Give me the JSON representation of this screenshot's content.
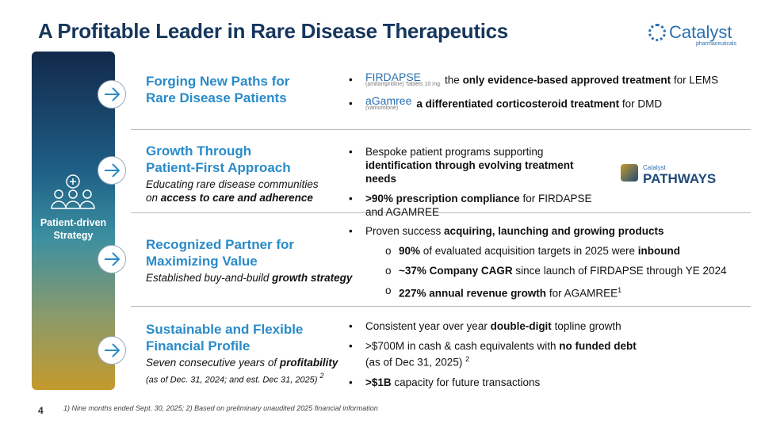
{
  "title": "A Profitable Leader in Rare Disease Therapeutics",
  "logo": {
    "name": "Catalyst",
    "sub": "pharmaceuticals"
  },
  "sidebar": {
    "label": "Patient-driven Strategy"
  },
  "rows": [
    {
      "heading": [
        "Forging New Paths for",
        "Rare Disease Patients"
      ],
      "subtitle": [],
      "bullets": [
        {
          "logo": {
            "name": "FIRDAPSE",
            "sub": "(amifampridine) Tablets 10 mg"
          },
          "segments": [
            {
              "text": "the "
            },
            {
              "text": "only evidence-based approved treatment",
              "bold": true
            },
            {
              "text": " for LEMS"
            }
          ]
        },
        {
          "logo": {
            "name": "aGamree",
            "sub": "(vamorolone)"
          },
          "segments": [
            {
              "text": "a differentiated corticosteroid treatment",
              "bold": true
            },
            {
              "text": " for DMD"
            }
          ]
        }
      ]
    },
    {
      "heading": [
        "Growth Through",
        "Patient-First Approach"
      ],
      "subtitle": [
        [
          {
            "text": "Educating rare disease communities"
          }
        ],
        [
          {
            "text": "on "
          },
          {
            "text": "access to care and adherence",
            "bold": true
          }
        ]
      ],
      "bullets": [
        {
          "segments": [
            {
              "text": "Bespoke patient programs supporting "
            },
            {
              "text": "identification through evolving treatment needs",
              "bold": true
            }
          ]
        },
        {
          "segments": [
            {
              "text": ">90% prescription compliance",
              "bold": true
            },
            {
              "text": " for FIRDAPSE and AGAMREE"
            }
          ]
        }
      ],
      "side_logo": {
        "name": "Catalyst",
        "main": "PATHWAYS"
      }
    },
    {
      "heading": [
        "Recognized Partner for",
        "Maximizing Value"
      ],
      "subtitle": [
        [
          {
            "text": "Established buy-and-build "
          },
          {
            "text": "growth strategy",
            "bold": true
          }
        ]
      ],
      "bullets": [
        {
          "segments": [
            {
              "text": "Proven success "
            },
            {
              "text": "acquiring, launching and growing products",
              "bold": true
            }
          ],
          "sub": [
            [
              {
                "text": "90%",
                "bold": true
              },
              {
                "text": " of evaluated acquisition targets in 2025 were "
              },
              {
                "text": "inbound",
                "bold": true
              }
            ],
            [
              {
                "text": "~37% Company CAGR",
                "bold": true
              },
              {
                "text": " since launch of FIRDAPSE through YE 2024"
              }
            ],
            [
              {
                "text": "227% annual revenue growth",
                "bold": true
              },
              {
                "text": " for AGAMREE"
              },
              {
                "text": "1",
                "sup": true
              }
            ]
          ]
        }
      ]
    },
    {
      "heading": [
        "Sustainable and Flexible",
        "Financial Profile"
      ],
      "subtitle": [
        [
          {
            "text": "Seven consecutive years of "
          },
          {
            "text": "profitability",
            "bold": true
          }
        ],
        [
          {
            "text": "(as of Dec. 31, 2024; and est. Dec 31, 2025) ",
            "small": true
          },
          {
            "text": "2",
            "sup": true
          }
        ]
      ],
      "bullets": [
        {
          "segments": [
            {
              "text": "Consistent year over year "
            },
            {
              "text": "double-digit",
              "bold": true
            },
            {
              "text": " topline growth"
            }
          ]
        },
        {
          "segments": [
            {
              "text": ">$700M in cash & cash equivalents with "
            },
            {
              "text": "no funded debt",
              "bold": true
            },
            {
              "text": " (as of Dec 31, 2025) "
            },
            {
              "text": "2",
              "sup": true
            }
          ]
        },
        {
          "segments": [
            {
              "text": ">$1B",
              "bold": true
            },
            {
              "text": " capacity for future transactions"
            }
          ]
        }
      ]
    }
  ],
  "page_number": 4,
  "footnote": "1) Nine months ended Sept. 30, 2025; 2) Based on preliminary unaudited 2025 financial information"
}
